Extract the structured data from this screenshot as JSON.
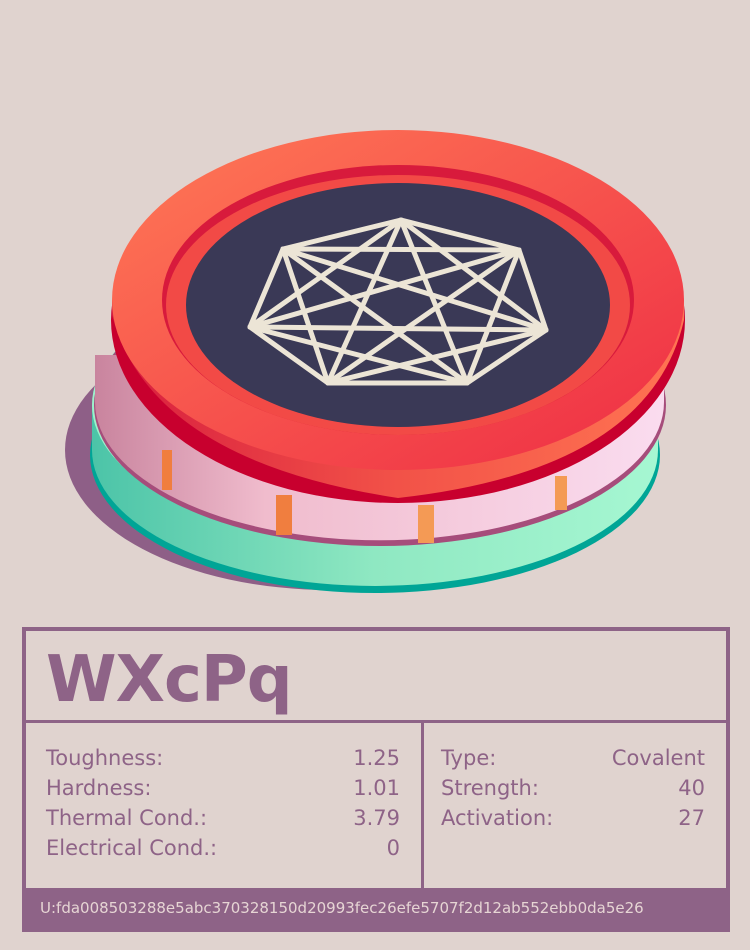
{
  "name": "WXcPq",
  "stats_left": [
    {
      "label": "Toughness:",
      "value": "1.25"
    },
    {
      "label": "Hardness:",
      "value": "1.01"
    },
    {
      "label": "Thermal Cond.:",
      "value": "3.79"
    },
    {
      "label": "Electrical Cond.:",
      "value": "0"
    }
  ],
  "stats_right": [
    {
      "label": "Type:",
      "value": "Covalent"
    },
    {
      "label": "Strength:",
      "value": "40"
    },
    {
      "label": "Activation:",
      "value": "27"
    }
  ],
  "uid": "U:fda008503288e5abc370328150d20993fec26efe5707f2d12ab552ebb0da5e26",
  "colors": {
    "background": "#e0d3cf",
    "accent": "#8e6387",
    "top_disk": "#f2404a",
    "middle_disk": "#f8cfe3",
    "bottom_disk": "#9ef2cc",
    "face": "#3a3956",
    "symbol": "#ece5d6"
  },
  "symbol": "heptagram-complete-graph"
}
